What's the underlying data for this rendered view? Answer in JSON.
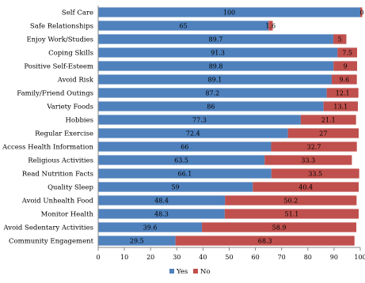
{
  "chart_data": {
    "type": "bar",
    "orientation": "horizontal",
    "stacked": true,
    "categories": [
      "Self Care",
      "Safe Relationships",
      "Enjoy Work/Studies",
      "Coping Skills",
      "Positive Self-Esteem",
      "Avoid Risk",
      "Family/Friend Outings",
      "Variety Foods",
      "Hobbies",
      "Regular Exercise",
      "Access Health Information",
      "Religious Activities",
      "Read Nutrition Facts",
      "Quality Sleep",
      "Avoid Unhealth Food",
      "Monitor Health",
      "Avoid Sedentary Activities",
      "Community Engagement"
    ],
    "series": [
      {
        "name": "Yes",
        "color": "#4f81bd",
        "values": [
          100,
          65,
          89.7,
          91.3,
          89.8,
          89.1,
          87.2,
          86,
          77.3,
          72.4,
          66,
          63.5,
          66.1,
          59,
          48.4,
          48.3,
          39.6,
          29.5
        ],
        "labels": [
          "100",
          "65",
          "89.7",
          "91.3",
          "89.8",
          "89.1",
          "87.2",
          "86",
          "77.3",
          "72.4",
          "66",
          "63.5",
          "66.1",
          "59",
          "48.4",
          "48.3",
          "39.6",
          "29.5"
        ]
      },
      {
        "name": "No",
        "color": "#c0504d",
        "values": [
          0,
          1.6,
          5,
          7.5,
          9,
          9.6,
          12.1,
          13.1,
          21.1,
          27,
          32.7,
          33.3,
          33.5,
          40.4,
          50.2,
          51.1,
          58.9,
          68.3
        ],
        "labels": [
          "0",
          "1.6",
          "5",
          "7.5",
          "9",
          "9.6",
          "12.1",
          "13.1",
          "21.1",
          "27",
          "32.7",
          "33.3",
          "33.5",
          "40.4",
          "50.2",
          "51.1",
          "58.9",
          "68.3"
        ]
      }
    ],
    "xlim": [
      0,
      100
    ],
    "xticks": [
      "0",
      "10",
      "20",
      "30",
      "40",
      "50",
      "60",
      "70",
      "80",
      "90",
      "100"
    ],
    "title": "",
    "xlabel": "",
    "ylabel": "",
    "grid": false,
    "legend_position": "bottom"
  }
}
